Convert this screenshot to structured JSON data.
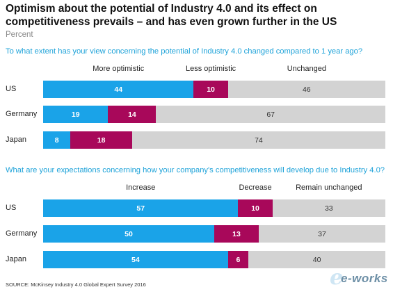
{
  "title": "Optimism about the potential of Industry 4.0 and its effect on competitiveness prevails – and has even grown further in the US",
  "subtitle": "Percent",
  "source": "SOURCE: McKinsey Industry 4.0 Global Expert Survey 2016",
  "logo_text": "e-works",
  "colors": {
    "segment_1": "#1aa3e8",
    "segment_2": "#a8085a",
    "segment_3": "#d3d3d3",
    "question": "#1fa3d9"
  },
  "chart_data": [
    {
      "type": "bar",
      "orientation": "horizontal",
      "stacked": true,
      "title": "To what extent has your view concerning the potential of Industry 4.0 changed compared to 1 year ago?",
      "categories": [
        "US",
        "Germany",
        "Japan"
      ],
      "series": [
        {
          "name": "More optimistic",
          "values": [
            44,
            19,
            8
          ]
        },
        {
          "name": "Less optimistic",
          "values": [
            10,
            14,
            18
          ]
        },
        {
          "name": "Unchanged",
          "values": [
            46,
            67,
            74
          ]
        }
      ]
    },
    {
      "type": "bar",
      "orientation": "horizontal",
      "stacked": true,
      "title": "What are your expectations concerning how your company's competitiveness will develop due to Industry 4.0?",
      "categories": [
        "US",
        "Germany",
        "Japan"
      ],
      "series": [
        {
          "name": "Increase",
          "values": [
            57,
            50,
            54
          ]
        },
        {
          "name": "Decrease",
          "values": [
            10,
            13,
            6
          ]
        },
        {
          "name": "Remain unchanged",
          "values": [
            33,
            37,
            40
          ]
        }
      ]
    }
  ]
}
